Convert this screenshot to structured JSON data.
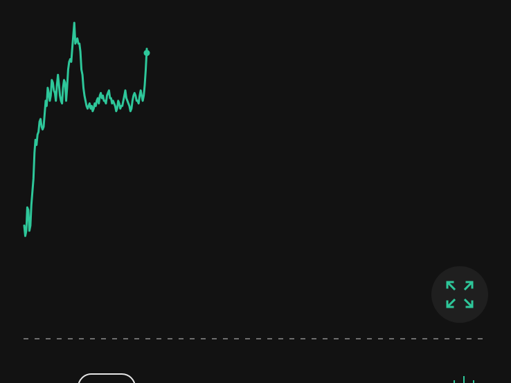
{
  "theme": {
    "background": "#121212",
    "line_color": "#2ec79a",
    "baseline_color": "#6e6e6e",
    "button_bg": "#1f1f1f",
    "pill_border": "#e6e6e6"
  },
  "chart_data": {
    "type": "line",
    "title": "",
    "xlabel": "",
    "ylabel": "",
    "grid": false,
    "ylim": [
      0,
      100
    ],
    "x": [
      0,
      1,
      2,
      3,
      4,
      5,
      6,
      7,
      8,
      9,
      10,
      11,
      12,
      13,
      14,
      15,
      16,
      17,
      18,
      19,
      20,
      21,
      22,
      23,
      24,
      25,
      26,
      27,
      28,
      29,
      30,
      31,
      32,
      33,
      34,
      35,
      36,
      37,
      38,
      39,
      40,
      41,
      42,
      43,
      44,
      45,
      46,
      47,
      48,
      49,
      50,
      51,
      52,
      53,
      54,
      55,
      56,
      57,
      58,
      59,
      60,
      61,
      62,
      63,
      64,
      65,
      66,
      67,
      68,
      69,
      70,
      71,
      72,
      73,
      74,
      75,
      76,
      77,
      78,
      79,
      80,
      81,
      82,
      83,
      84,
      85,
      86,
      87,
      88,
      89,
      90,
      91,
      92,
      93,
      94,
      95,
      96,
      97,
      98,
      99,
      100,
      101,
      102,
      103,
      104,
      105,
      106,
      107,
      108,
      109,
      110,
      111,
      112,
      113,
      114,
      115,
      116,
      117,
      118,
      119,
      120
    ],
    "series": [
      {
        "values": [
          22,
          18,
          20,
          29,
          28,
          20,
          22,
          30,
          35,
          40,
          50,
          55,
          53,
          57,
          58,
          62,
          63,
          60,
          59,
          60,
          65,
          70,
          68,
          75,
          73,
          70,
          72,
          78,
          77,
          74,
          73,
          70,
          76,
          80,
          76,
          72,
          70,
          69,
          75,
          78,
          77,
          70,
          75,
          82,
          85,
          86,
          85,
          90,
          95,
          100,
          92,
          93,
          94,
          92,
          92,
          89,
          82,
          80,
          75,
          72,
          70,
          68,
          67,
          68,
          69,
          67,
          68,
          66,
          67,
          69,
          68,
          70,
          71,
          69,
          72,
          73,
          71,
          72,
          70,
          70,
          69,
          72,
          73,
          74,
          71,
          71,
          69,
          70,
          69,
          68,
          66,
          67,
          70,
          69,
          67,
          68,
          68,
          70,
          72,
          74,
          71,
          70,
          69,
          68,
          66,
          67,
          70,
          72,
          73,
          72,
          70,
          70,
          69,
          72,
          74,
          72,
          70,
          72,
          76,
          82,
          90
        ]
      }
    ],
    "last_value": 90,
    "show_last_point": true
  },
  "controls": {
    "expand_icon": "expand-arrows-icon",
    "chart_type_icon": "candlestick-icon"
  }
}
